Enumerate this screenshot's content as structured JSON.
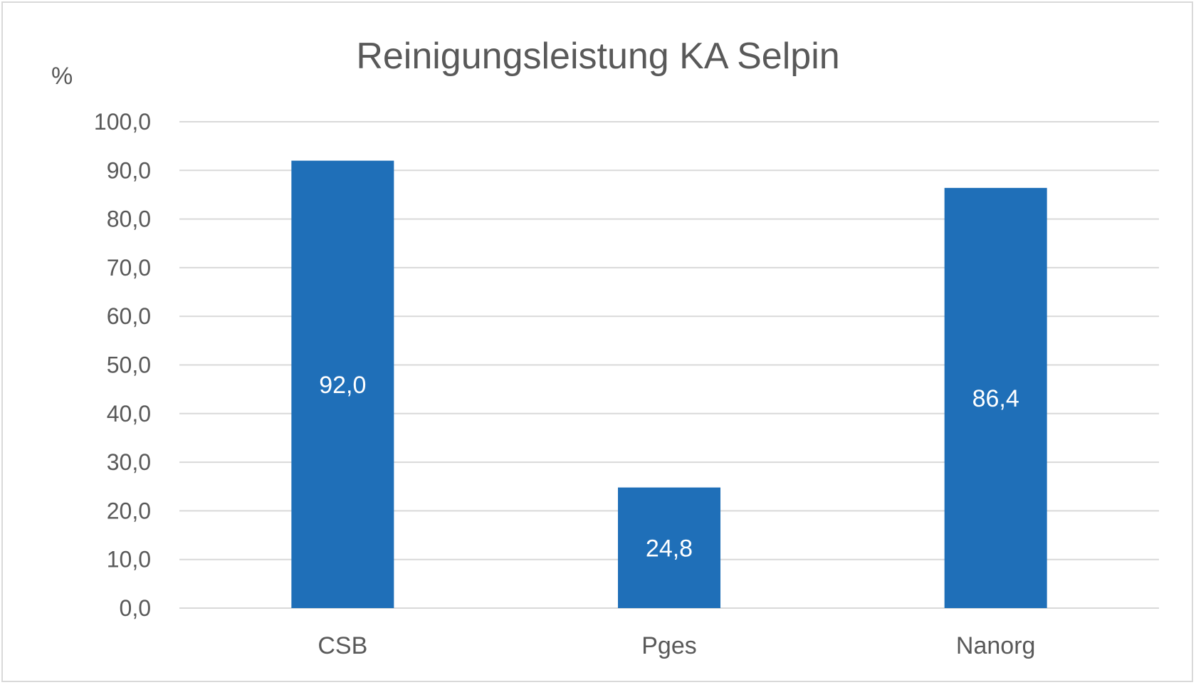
{
  "chart_data": {
    "type": "bar",
    "title": "Reinigungsleistung KA Selpin",
    "ylabel": "%",
    "categories": [
      "CSB",
      "Pges",
      "Nanorg"
    ],
    "values": [
      92.0,
      24.8,
      86.4
    ],
    "data_labels": [
      "92,0",
      "24,8",
      "86,4"
    ],
    "ylim": [
      0,
      100
    ],
    "yticks": [
      0,
      10,
      20,
      30,
      40,
      50,
      60,
      70,
      80,
      90,
      100
    ],
    "ytick_labels": [
      "0,0",
      "10,0",
      "20,0",
      "30,0",
      "40,0",
      "50,0",
      "60,0",
      "70,0",
      "80,0",
      "90,0",
      "100,0"
    ],
    "grid": true,
    "legend": "none",
    "bar_color": "#1f6fb8"
  }
}
